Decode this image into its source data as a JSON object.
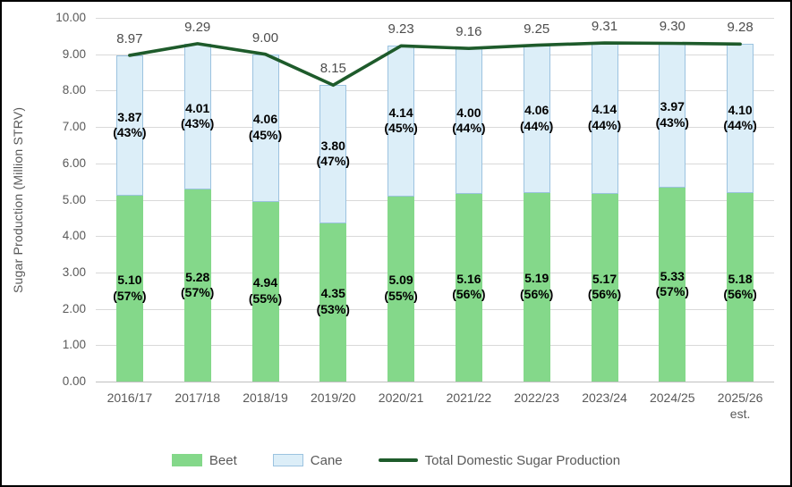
{
  "chart_data": {
    "type": "bar",
    "stacked": true,
    "title": "",
    "ylabel": "Sugar Production (Million STRV)",
    "xlabel": "",
    "ylim": [
      0,
      10
    ],
    "ytick_step": 1,
    "grid": true,
    "legend_position": "bottom",
    "categories": [
      "2016/17",
      "2017/18",
      "2018/19",
      "2019/20",
      "2020/21",
      "2021/22",
      "2022/23",
      "2023/24",
      "2024/25",
      "2025/26\nest."
    ],
    "series": [
      {
        "name": "Beet",
        "color": "#84d88a",
        "values": [
          5.1,
          5.28,
          4.94,
          4.35,
          5.09,
          5.16,
          5.19,
          5.17,
          5.33,
          5.18
        ],
        "pct_labels": [
          "(57%)",
          "(57%)",
          "(55%)",
          "(53%)",
          "(55%)",
          "(56%)",
          "(56%)",
          "(56%)",
          "(57%)",
          "(56%)"
        ]
      },
      {
        "name": "Cane",
        "color": "#dceef8",
        "values": [
          3.87,
          4.01,
          4.06,
          3.8,
          4.14,
          4.0,
          4.06,
          4.14,
          3.97,
          4.1
        ],
        "pct_labels": [
          "(43%)",
          "(43%)",
          "(45%)",
          "(47%)",
          "(45%)",
          "(44%)",
          "(44%)",
          "(44%)",
          "(43%)",
          "(44%)"
        ]
      }
    ],
    "line": {
      "name": "Total Domestic Sugar Production",
      "color": "#1e5b2b",
      "values": [
        8.97,
        9.29,
        9.0,
        8.15,
        9.23,
        9.16,
        9.25,
        9.31,
        9.3,
        9.28
      ]
    }
  },
  "legend": {
    "beet_label": "Beet",
    "cane_label": "Cane",
    "line_label": "Total Domestic Sugar Production"
  }
}
